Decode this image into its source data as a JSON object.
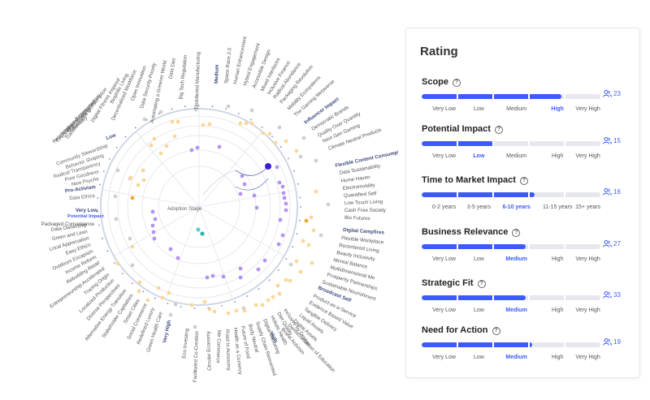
{
  "radar": {
    "center_label": "Adoption Stage",
    "rings": [
      "Very Low",
      "Low",
      "Medium",
      "High",
      "Very High"
    ],
    "ring_notes": {
      "Very Low": "Potential Impact"
    },
    "left_labels": [
      "Ethics Mandatory",
      "Modern Meaning",
      "Relationships Redesigned",
      "Beyond Consumerism",
      "Transformative Consumption",
      "Digital Fitness Inspired",
      "Biophilic Living",
      "Decentralized Workforce",
      "Open Innovation",
      "Data Security Priority",
      "Automating a Greener World",
      "Data Diet",
      "Big Tech Regulation",
      "Distributed Manufacturing"
    ],
    "top_labels": [
      "Space Race 2.0",
      "Human Enhancement",
      "Hybrid Engagement",
      "Accessible Design",
      "Mixed Interfaces",
      "Inclusive Finance",
      "Radical Abundance",
      "Packaging Revolution",
      "Mobility Ecosystems",
      "The Gaming Metaverse",
      "Influencer Impact",
      "Democratic Brands",
      "Quality Over Quantity",
      "Next Gen Gaming",
      "Climate Neutral Products"
    ],
    "right_labels": [
      "Flexible Content Consumption",
      "Data Sustainability",
      "Home Haven",
      "Electromobility",
      "Quantified Self",
      "Low Touch Living",
      "Cash Free Society",
      "Bio Futures",
      "Digital Campfires",
      "Flexible Workplace",
      "Recentered Living",
      "Beauty Inclusivity",
      "Mental Balance",
      "Multidimensional Me",
      "Prosperity Partnerships",
      "Sustainable Nourishment",
      "Broadcast Self",
      "Product-as-a-Service",
      "Evidence Based Value",
      "Tangible Delivery",
      "Liquid Assets",
      "Digital Assets",
      "Democratization of Education",
      "Brand Activism"
    ],
    "bottom_labels": [
      "Very High",
      "Eco Investing",
      "Facilitated Co-Creation",
      "Circular Economy",
      "Me Commerce",
      "Road to Autonomy",
      "Health as a Currency",
      "Future of Food",
      "Body Neutral",
      "Supply Chain Reinvented",
      "Digital Wellbeing",
      "Holistic Health",
      "Diet Quality",
      "Inclusive by Design"
    ],
    "lower_left_labels": [
      "Green Health Care",
      "Redefined Luxury",
      "Social Commerce",
      "Smart Cities",
      "Stakeholder Capitalism",
      "Alternative Energy Transition",
      "Diverse Perspectives",
      "Localized Production",
      "Tracing Origin",
      "Entrepreneurship Accelerated",
      "Rebuilding Retail",
      "Income Reform",
      "Outdoors Escapism",
      "Easy Ethics",
      "Local Appreciation",
      "Green and Lean",
      "Data Ownership",
      "Packaged Convenience"
    ],
    "upper_left_labels": [
      "Low",
      "Community Stewardship",
      "Behavior Shaping",
      "Radical Transparency",
      "Pure Goodness",
      "New Psyche",
      "Pro-Activism",
      "Data Ethics",
      "Very Low"
    ]
  },
  "panel": {
    "title": "Rating",
    "sections": [
      {
        "title": "Scope",
        "fill": 0.78,
        "count": "23",
        "options": [
          "Very Low",
          "Low",
          "Medium",
          "High",
          "Very High"
        ],
        "selected": 3
      },
      {
        "title": "Potential Impact",
        "fill": 0.4,
        "count": "15",
        "options": [
          "Very Low",
          "Low",
          "Medium",
          "High",
          "Very High"
        ],
        "selected": 1
      },
      {
        "title": "Time to Market Impact",
        "fill": 0.63,
        "count": "16",
        "options": [
          "0-2 years",
          "3-5 years",
          "6-10 years",
          "11-15 years",
          "15+ years"
        ],
        "selected": 2
      },
      {
        "title": "Business Relevance",
        "fill": 0.58,
        "count": "27",
        "options": [
          "Very Low",
          "Low",
          "Medium",
          "High",
          "Very High"
        ],
        "selected": 2
      },
      {
        "title": "Strategic Fit",
        "fill": 0.58,
        "count": "33",
        "options": [
          "Very Low",
          "Low",
          "Medium",
          "High",
          "Very High"
        ],
        "selected": 2
      },
      {
        "title": "Need for Action",
        "fill": 0.62,
        "count": "19",
        "options": [
          "Very Low",
          "Low",
          "Medium",
          "High",
          "Very High"
        ],
        "selected": 2
      }
    ]
  }
}
